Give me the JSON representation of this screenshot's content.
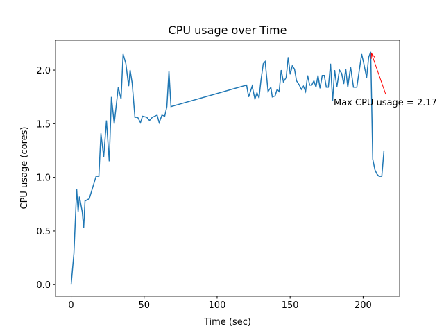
{
  "chart_data": {
    "type": "line",
    "title": "CPU usage over Time",
    "xlabel": "Time (sec)",
    "ylabel": "CPU usage (cores)",
    "color": "#1f77b4",
    "x": [
      0,
      1.9,
      3.8,
      4.8,
      5.7,
      7.6,
      8.6,
      9.5,
      12.4,
      17.1,
      19,
      20.4,
      22.3,
      24.2,
      26.1,
      27.6,
      29.5,
      32.3,
      34.2,
      35.6,
      37.5,
      39.4,
      40.4,
      41.8,
      43.7,
      45.6,
      47.5,
      48.9,
      51.8,
      53.7,
      55.6,
      58.9,
      60.3,
      62.2,
      64.1,
      65.6,
      67,
      68.4,
      120.2,
      121.6,
      124,
      125.9,
      127.3,
      128.7,
      130,
      131.6,
      132.9,
      134.9,
      136.8,
      137.8,
      139.7,
      141.1,
      142.5,
      143.9,
      145.4,
      147.3,
      148.7,
      150.1,
      151.5,
      153,
      154.4,
      156.3,
      157.7,
      159.1,
      160.6,
      162,
      163.4,
      164.8,
      166.3,
      167.7,
      169.1,
      170.5,
      172,
      173.4,
      174.8,
      176.2,
      177.7,
      179.1,
      180.5,
      182,
      183.8,
      185.3,
      186.7,
      188.1,
      189.5,
      191.4,
      193.4,
      195.7,
      199,
      200.5,
      202.4,
      203.8,
      205.2,
      206.6,
      208.1,
      209.5,
      210.9,
      212.8,
      214.3
    ],
    "values": [
      0,
      0.29,
      0.89,
      0.68,
      0.82,
      0.68,
      0.53,
      0.78,
      0.8,
      1.01,
      1.01,
      1.41,
      1.19,
      1.53,
      1.15,
      1.75,
      1.5,
      1.84,
      1.73,
      2.15,
      2.06,
      1.85,
      2,
      1.88,
      1.56,
      1.56,
      1.51,
      1.57,
      1.56,
      1.53,
      1.56,
      1.58,
      1.51,
      1.58,
      1.57,
      1.66,
      1.99,
      1.66,
      1.86,
      1.75,
      1.85,
      1.73,
      1.79,
      1.74,
      1.9,
      2.06,
      2.08,
      1.8,
      1.84,
      1.75,
      1.76,
      1.82,
      1.8,
      2,
      1.89,
      1.93,
      2.12,
      1.96,
      2.04,
      2.01,
      1.9,
      1.86,
      1.82,
      1.85,
      1.8,
      1.95,
      1.86,
      1.86,
      1.9,
      1.84,
      1.95,
      1.83,
      1.95,
      1.95,
      1.84,
      1.84,
      2.06,
      1.71,
      2,
      1.84,
      2,
      1.97,
      1.87,
      2.01,
      1.84,
      2.03,
      1.84,
      1.84,
      2.15,
      2.06,
      1.93,
      2.12,
      2.17,
      1.17,
      1.07,
      1.03,
      1.01,
      1.01,
      1.25
    ],
    "xlim": [
      -10.7,
      225
    ],
    "ylim": [
      -0.1085,
      2.2785
    ],
    "xticks": [
      0,
      50,
      100,
      150,
      200
    ],
    "yticks": [
      {
        "value": 0,
        "label": "0.0"
      },
      {
        "value": 0.5,
        "label": "0.5"
      },
      {
        "value": 1,
        "label": "1.0"
      },
      {
        "value": 1.5,
        "label": "1.5"
      },
      {
        "value": 2,
        "label": "2.0"
      }
    ],
    "annotation": {
      "text": "Max CPU usage = 2.17",
      "color": "red"
    }
  }
}
